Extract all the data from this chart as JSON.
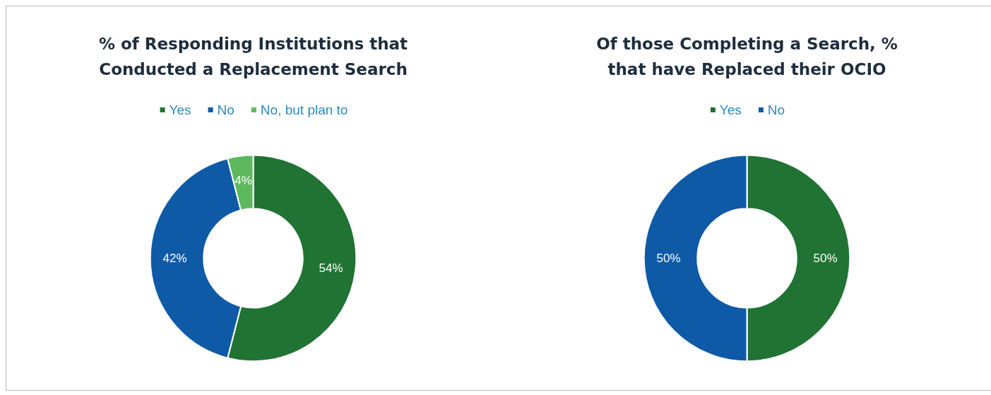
{
  "chart_data": [
    {
      "type": "donut",
      "title": "% of Responding Institutions that\nConducted a Replacement Search",
      "categories": [
        "Yes",
        "No",
        "No, but plan to"
      ],
      "values": [
        54,
        42,
        4
      ],
      "colors": [
        "#217334",
        "#0e5aa7",
        "#5cb85c"
      ],
      "value_labels": [
        "54%",
        "42%",
        "4%"
      ],
      "legend": "top"
    },
    {
      "type": "donut",
      "title": "Of those Completing a Search, %\nthat have Replaced their OCIO",
      "categories": [
        "Yes",
        "No"
      ],
      "values": [
        50,
        50
      ],
      "colors": [
        "#217334",
        "#0e5aa7"
      ],
      "value_labels": [
        "50%",
        "50%"
      ],
      "legend": "top"
    }
  ]
}
